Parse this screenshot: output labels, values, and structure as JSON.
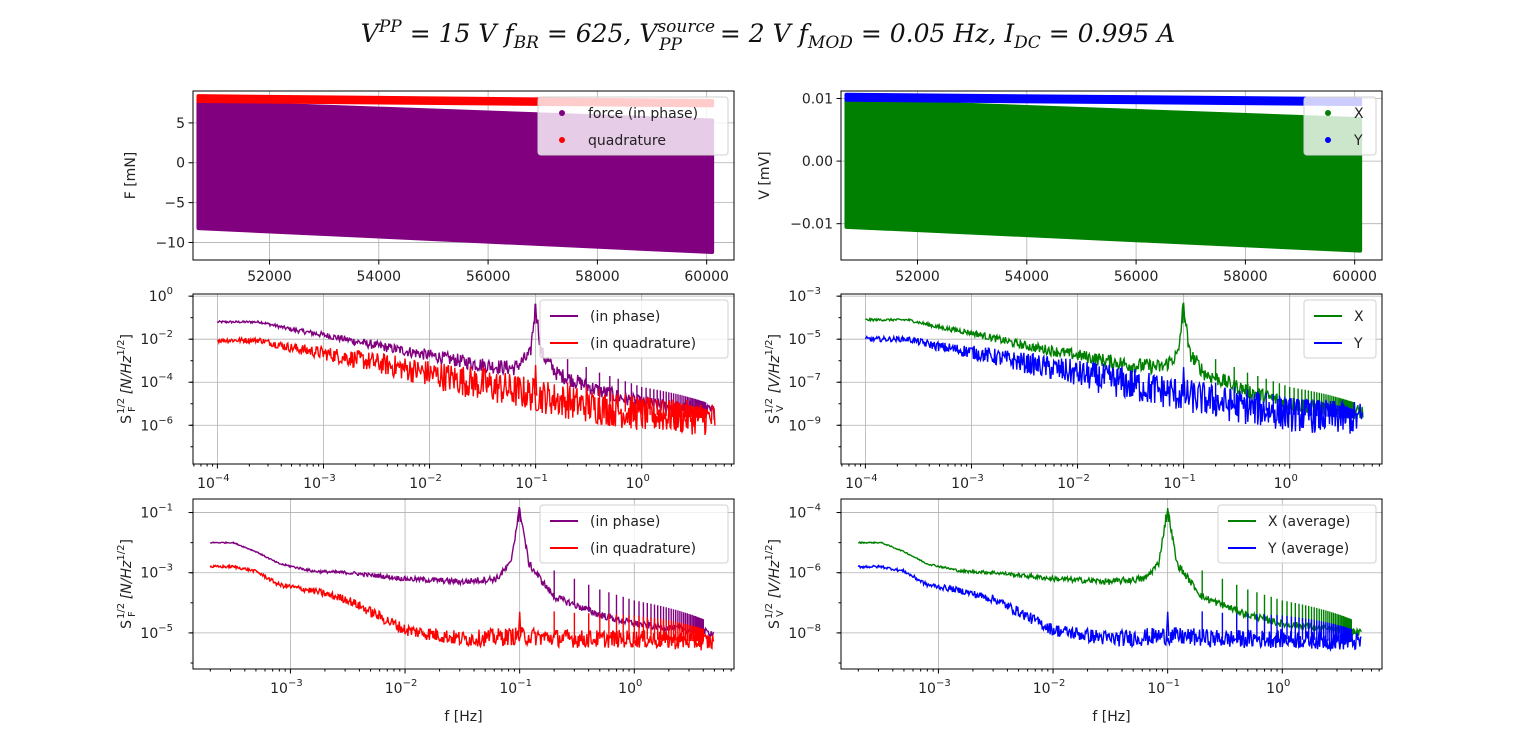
{
  "title": "V^PP = 15 V f_BR = 625, V_PP^source = 2 V f_MOD = 0.05 Hz, I_DC = 0.995 A",
  "title_parts": {
    "v": "V",
    "pp_sup": "PP",
    "eq1": " = 15 V ",
    "f": "f",
    "br_sub": "BR",
    "eq2": " = 625,  ",
    "v2": "V",
    "source_sup": "source",
    "pp_sub": "PP",
    "eq3": " = 2 V ",
    "f2": "f",
    "mod_sub": "MOD",
    "eq4": " = 0.05 Hz,  ",
    "i": "I",
    "dc_sub": "DC",
    "eq5": " = 0.995 A"
  },
  "colors": {
    "purple": "#800080",
    "red": "#ff0000",
    "green": "#008000",
    "blue": "#0000ff"
  },
  "chart_data": [
    {
      "id": "p1",
      "type": "scatter",
      "xscale": "linear",
      "yscale": "linear",
      "xlim": [
        50600,
        60500
      ],
      "ylim": [
        -12.2,
        9.0
      ],
      "xticks": [
        52000,
        54000,
        56000,
        58000,
        60000
      ],
      "xtick_labels": [
        "52000",
        "54000",
        "56000",
        "58000",
        "60000"
      ],
      "yticks": [
        -10,
        -5,
        0,
        5
      ],
      "ytick_labels": [
        "−10",
        "−5",
        "0",
        "5"
      ],
      "xlabel": "",
      "ylabel": "F [mN]",
      "legend": "top-right",
      "series": [
        {
          "name": "force (in phase)",
          "color": "purple",
          "kind": "band",
          "x": [
            50700,
            60100
          ],
          "upper": [
            7.6,
            5.3
          ],
          "lower": [
            -8.2,
            -11.2
          ]
        },
        {
          "name": "quadrature",
          "color": "red",
          "kind": "thin",
          "x": [
            50700,
            60100
          ],
          "upper": [
            8.35,
            7.75
          ],
          "lower": [
            7.75,
            7.2
          ]
        }
      ]
    },
    {
      "id": "p2",
      "type": "scatter",
      "xscale": "linear",
      "yscale": "linear",
      "xlim": [
        50600,
        60500
      ],
      "ylim": [
        -0.0158,
        0.0112
      ],
      "xticks": [
        52000,
        54000,
        56000,
        58000,
        60000
      ],
      "xtick_labels": [
        "52000",
        "54000",
        "56000",
        "58000",
        "60000"
      ],
      "yticks": [
        -0.01,
        0.0,
        0.01
      ],
      "ytick_labels": [
        "−0.01",
        "0.00",
        "0.01"
      ],
      "xlabel": "",
      "ylabel": "V [mV]",
      "legend": "top-right",
      "series": [
        {
          "name": "X",
          "color": "green",
          "kind": "band",
          "x": [
            50700,
            60100
          ],
          "upper": [
            0.0097,
            0.0067
          ],
          "lower": [
            -0.0105,
            -0.0143
          ]
        },
        {
          "name": "Y",
          "color": "blue",
          "kind": "thin",
          "x": [
            50700,
            60100
          ],
          "upper": [
            0.0106,
            0.0099
          ],
          "lower": [
            0.0098,
            0.0091
          ]
        }
      ]
    },
    {
      "id": "p3",
      "type": "line",
      "xscale": "log",
      "yscale": "log",
      "xlim_log10": [
        -4.23,
        0.87
      ],
      "ylim_log10": [
        -7.8,
        0.1
      ],
      "xticks_log10": [
        -4,
        -3,
        -2,
        -1,
        0
      ],
      "xtick_labels": [
        "10",
        "10",
        "10",
        "10",
        "10"
      ],
      "xtick_exps": [
        "−4",
        "−3",
        "−2",
        "−1",
        "0"
      ],
      "yticks_log10": [
        -6,
        -4,
        -2,
        0
      ],
      "ytick_labels": [
        "10",
        "10",
        "10",
        "10"
      ],
      "ytick_exps": [
        "−6",
        "−4",
        "−2",
        "0"
      ],
      "ylabel_main": "S",
      "ylabel_sup": "1/2",
      "ylabel_sub": "F",
      "ylabel_units": "[N/Hz",
      "ylabel_units_sup": "1/2",
      "ylabel_units_end": "]",
      "xlabel": "",
      "legend": "top-right",
      "series": [
        {
          "name": "(in phase)",
          "color": "purple",
          "trend_log10": [
            [
              -4.0,
              -1.2
            ],
            [
              -3.6,
              -1.2
            ],
            [
              -3.3,
              -1.55
            ],
            [
              -3.0,
              -1.8
            ],
            [
              -2.5,
              -2.3
            ],
            [
              -2.0,
              -2.75
            ],
            [
              -1.5,
              -3.2
            ],
            [
              -1.2,
              -3.35
            ],
            [
              -1.05,
              -2.7
            ],
            [
              -1.0,
              -0.35
            ],
            [
              -0.95,
              -2.6
            ],
            [
              -0.8,
              -3.6
            ],
            [
              -0.4,
              -4.4
            ],
            [
              0.0,
              -5.0
            ],
            [
              0.69,
              -5.4
            ]
          ],
          "noise": 0.35,
          "peak_log10": [
            -1.0,
            -0.35
          ]
        },
        {
          "name": "(in quadrature)",
          "color": "red",
          "trend_log10": [
            [
              -4.0,
              -2.05
            ],
            [
              -3.6,
              -2.05
            ],
            [
              -3.3,
              -2.4
            ],
            [
              -3.0,
              -2.65
            ],
            [
              -2.5,
              -3.1
            ],
            [
              -2.0,
              -3.6
            ],
            [
              -1.5,
              -4.1
            ],
            [
              -1.0,
              -4.6
            ],
            [
              -0.5,
              -5.1
            ],
            [
              0.0,
              -5.5
            ],
            [
              0.69,
              -5.7
            ]
          ],
          "noise": 0.8,
          "peak_log10": [
            -1.0,
            -3.2
          ]
        }
      ]
    },
    {
      "id": "p4",
      "type": "line",
      "xscale": "log",
      "yscale": "log",
      "xlim_log10": [
        -4.23,
        0.87
      ],
      "ylim_log10": [
        -10.8,
        -2.9
      ],
      "xticks_log10": [
        -4,
        -3,
        -2,
        -1,
        0
      ],
      "xtick_labels": [
        "10",
        "10",
        "10",
        "10",
        "10"
      ],
      "xtick_exps": [
        "−4",
        "−3",
        "−2",
        "−1",
        "0"
      ],
      "yticks_log10": [
        -9,
        -7,
        -5,
        -3
      ],
      "ytick_labels": [
        "10",
        "10",
        "10",
        "10"
      ],
      "ytick_exps": [
        "−9",
        "−7",
        "−5",
        "−3"
      ],
      "ylabel_main": "S",
      "ylabel_sup": "1/2",
      "ylabel_sub": "V",
      "ylabel_units": "[V/Hz",
      "ylabel_units_sup": "1/2",
      "ylabel_units_end": "]",
      "xlabel": "",
      "legend": "top-right",
      "series": [
        {
          "name": "X",
          "color": "green",
          "trend_log10": [
            [
              -4.0,
              -4.1
            ],
            [
              -3.6,
              -4.1
            ],
            [
              -3.3,
              -4.45
            ],
            [
              -3.0,
              -4.7
            ],
            [
              -2.5,
              -5.3
            ],
            [
              -2.0,
              -5.75
            ],
            [
              -1.5,
              -6.2
            ],
            [
              -1.2,
              -6.3
            ],
            [
              -1.05,
              -5.7
            ],
            [
              -1.0,
              -3.3
            ],
            [
              -0.95,
              -5.6
            ],
            [
              -0.8,
              -6.6
            ],
            [
              -0.4,
              -7.4
            ],
            [
              0.0,
              -8.0
            ],
            [
              0.69,
              -8.4
            ]
          ],
          "noise": 0.35,
          "peak_log10": [
            -1.0,
            -3.3
          ]
        },
        {
          "name": "Y",
          "color": "blue",
          "trend_log10": [
            [
              -4.0,
              -5.0
            ],
            [
              -3.6,
              -5.0
            ],
            [
              -3.3,
              -5.35
            ],
            [
              -3.0,
              -5.6
            ],
            [
              -2.5,
              -6.1
            ],
            [
              -2.0,
              -6.6
            ],
            [
              -1.5,
              -7.1
            ],
            [
              -1.0,
              -7.6
            ],
            [
              -0.5,
              -8.1
            ],
            [
              0.0,
              -8.5
            ],
            [
              0.69,
              -8.7
            ]
          ],
          "noise": 0.8,
          "peak_log10": [
            -1.0,
            -6.3
          ]
        }
      ]
    },
    {
      "id": "p5",
      "type": "line",
      "xscale": "log",
      "yscale": "log",
      "xlim_log10": [
        -3.85,
        0.87
      ],
      "ylim_log10": [
        -6.2,
        -0.55
      ],
      "xticks_log10": [
        -3,
        -2,
        -1,
        0
      ],
      "xtick_labels": [
        "10",
        "10",
        "10",
        "10"
      ],
      "xtick_exps": [
        "−3",
        "−2",
        "−1",
        "0"
      ],
      "yticks_log10": [
        -5,
        -3,
        -1
      ],
      "ytick_labels": [
        "10",
        "10",
        "10"
      ],
      "ytick_exps": [
        "−5",
        "−3",
        "−1"
      ],
      "ylabel_main": "S",
      "ylabel_sup": "1/2",
      "ylabel_sub": "F",
      "ylabel_units": "[N/Hz",
      "ylabel_units_sup": "1/2",
      "ylabel_units_end": "]",
      "xlabel": "f [Hz]",
      "legend": "top-right",
      "series": [
        {
          "name": "(in phase)",
          "color": "purple",
          "trend_log10": [
            [
              -3.7,
              -2.0
            ],
            [
              -3.5,
              -2.0
            ],
            [
              -3.3,
              -2.3
            ],
            [
              -3.1,
              -2.7
            ],
            [
              -2.8,
              -2.95
            ],
            [
              -2.5,
              -3.0
            ],
            [
              -2.0,
              -3.2
            ],
            [
              -1.5,
              -3.3
            ],
            [
              -1.2,
              -3.2
            ],
            [
              -1.08,
              -2.7
            ],
            [
              -1.0,
              -0.85
            ],
            [
              -0.92,
              -2.7
            ],
            [
              -0.7,
              -3.8
            ],
            [
              -0.3,
              -4.4
            ],
            [
              0.0,
              -4.7
            ],
            [
              0.69,
              -5.0
            ]
          ],
          "noise": 0.12,
          "peak_log10": [
            -1.0,
            -0.85
          ]
        },
        {
          "name": "(in quadrature)",
          "color": "red",
          "trend_log10": [
            [
              -3.7,
              -2.8
            ],
            [
              -3.5,
              -2.8
            ],
            [
              -3.3,
              -2.95
            ],
            [
              -3.1,
              -3.4
            ],
            [
              -2.8,
              -3.6
            ],
            [
              -2.5,
              -3.9
            ],
            [
              -2.2,
              -4.5
            ],
            [
              -2.0,
              -4.9
            ],
            [
              -1.5,
              -5.2
            ],
            [
              -1.0,
              -5.1
            ],
            [
              -0.5,
              -5.2
            ],
            [
              0.0,
              -5.2
            ],
            [
              0.69,
              -5.3
            ]
          ],
          "noise": 0.3,
          "peak_log10": [
            -1.0,
            -4.3
          ]
        }
      ]
    },
    {
      "id": "p6",
      "type": "line",
      "xscale": "log",
      "yscale": "log",
      "xlim_log10": [
        -3.85,
        0.87
      ],
      "ylim_log10": [
        -9.2,
        -3.55
      ],
      "xticks_log10": [
        -3,
        -2,
        -1,
        0
      ],
      "xtick_labels": [
        "10",
        "10",
        "10",
        "10"
      ],
      "xtick_exps": [
        "−3",
        "−2",
        "−1",
        "0"
      ],
      "yticks_log10": [
        -8,
        -6,
        -4
      ],
      "ytick_labels": [
        "10",
        "10",
        "10"
      ],
      "ytick_exps": [
        "−8",
        "−6",
        "−4"
      ],
      "ylabel_main": "S",
      "ylabel_sup": "1/2",
      "ylabel_sub": "V",
      "ylabel_units": "[V/Hz",
      "ylabel_units_sup": "1/2",
      "ylabel_units_end": "]",
      "xlabel": "f [Hz]",
      "legend": "top-right",
      "series": [
        {
          "name": "X (average)",
          "color": "green",
          "trend_log10": [
            [
              -3.7,
              -5.0
            ],
            [
              -3.5,
              -5.0
            ],
            [
              -3.3,
              -5.3
            ],
            [
              -3.1,
              -5.7
            ],
            [
              -2.8,
              -5.95
            ],
            [
              -2.5,
              -6.0
            ],
            [
              -2.0,
              -6.2
            ],
            [
              -1.5,
              -6.3
            ],
            [
              -1.2,
              -6.2
            ],
            [
              -1.08,
              -5.7
            ],
            [
              -1.0,
              -3.85
            ],
            [
              -0.92,
              -5.7
            ],
            [
              -0.7,
              -6.8
            ],
            [
              -0.3,
              -7.4
            ],
            [
              0.0,
              -7.7
            ],
            [
              0.69,
              -8.0
            ]
          ],
          "noise": 0.12,
          "peak_log10": [
            -1.0,
            -3.85
          ]
        },
        {
          "name": "Y (average)",
          "color": "blue",
          "trend_log10": [
            [
              -3.7,
              -5.8
            ],
            [
              -3.5,
              -5.8
            ],
            [
              -3.3,
              -5.95
            ],
            [
              -3.1,
              -6.4
            ],
            [
              -2.8,
              -6.6
            ],
            [
              -2.5,
              -6.9
            ],
            [
              -2.2,
              -7.5
            ],
            [
              -2.0,
              -7.9
            ],
            [
              -1.5,
              -8.2
            ],
            [
              -1.0,
              -8.1
            ],
            [
              -0.5,
              -8.2
            ],
            [
              0.0,
              -8.2
            ],
            [
              0.69,
              -8.3
            ]
          ],
          "noise": 0.3,
          "peak_log10": [
            -1.0,
            -7.3
          ]
        }
      ]
    }
  ]
}
